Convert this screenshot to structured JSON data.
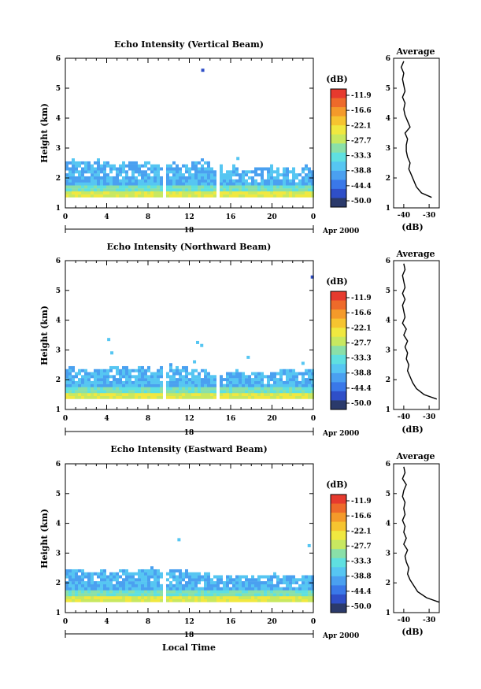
{
  "chart_data": [
    {
      "type": "heatmap",
      "title": "Echo Intensity (Vertical Beam)",
      "ylabel": "Height (km)",
      "ylim": [
        1,
        6
      ],
      "yticks": [
        "1",
        "2",
        "3",
        "4",
        "5",
        "6"
      ],
      "xlim": [
        0,
        24
      ],
      "xticks": [
        "0",
        "4",
        "8",
        "12",
        "16",
        "20",
        "0"
      ],
      "date_label": "18",
      "month_label": "Apr 2000",
      "colorbar": {
        "unit": "(dB)",
        "ticks": [
          "-11.9",
          "-16.6",
          "-22.1",
          "-27.7",
          "-33.3",
          "-38.8",
          "-44.4",
          "-50.0"
        ]
      },
      "echo_layer": {
        "base_km": 1.35,
        "top_km": [
          2.5,
          2.5,
          2.45,
          2.5,
          2.4,
          2.45,
          2.5,
          2.4,
          2.35,
          2.4,
          2.45,
          2.4,
          2.5,
          2.55,
          2.4,
          2.2,
          2.3,
          2.2,
          2.3,
          2.35,
          2.25,
          2.3,
          2.25,
          2.3
        ],
        "gaps_hours": [
          9.5,
          14.6
        ],
        "isolated_points": [
          {
            "t": 13.3,
            "h": 5.6
          },
          {
            "t": 16.7,
            "h": 2.65
          }
        ]
      },
      "average_profile": {
        "title": "Average",
        "xlabel": "(dB)",
        "xticks": [
          "-40",
          "-30"
        ],
        "height_km": [
          1.35,
          1.5,
          1.7,
          1.9,
          2.1,
          2.3,
          2.5,
          2.7,
          2.9,
          3.1,
          3.3,
          3.5,
          3.7,
          3.9,
          4.1,
          4.3,
          4.5,
          4.7,
          4.9,
          5.1,
          5.3,
          5.5,
          5.7,
          5.9
        ],
        "db": [
          -29,
          -33,
          -35,
          -36,
          -37,
          -38,
          -37.5,
          -38.5,
          -39,
          -39,
          -38.5,
          -39.5,
          -37.5,
          -38.5,
          -39.5,
          -40,
          -39.5,
          -40.5,
          -39.5,
          -40,
          -40.5,
          -40,
          -41,
          -40
        ]
      }
    },
    {
      "type": "heatmap",
      "title": "Echo Intensity (Northward Beam)",
      "ylabel": "Height (km)",
      "ylim": [
        1,
        6
      ],
      "yticks": [
        "1",
        "2",
        "3",
        "4",
        "5",
        "6"
      ],
      "xlim": [
        0,
        24
      ],
      "xticks": [
        "0",
        "4",
        "8",
        "12",
        "16",
        "20",
        "0"
      ],
      "date_label": "18",
      "month_label": "Apr 2000",
      "colorbar": {
        "unit": "(dB)",
        "ticks": [
          "-11.9",
          "-16.6",
          "-22.1",
          "-27.7",
          "-33.3",
          "-38.8",
          "-44.4",
          "-50.0"
        ]
      },
      "echo_layer": {
        "base_km": 1.35,
        "top_km": [
          2.35,
          2.3,
          2.35,
          2.3,
          2.35,
          2.35,
          2.3,
          2.35,
          2.3,
          2.3,
          2.4,
          2.35,
          2.3,
          2.3,
          2.15,
          2.2,
          2.25,
          2.2,
          2.2,
          2.3,
          2.25,
          2.25,
          2.2,
          2.3
        ],
        "gaps_hours": [
          9.5,
          14.6
        ],
        "isolated_points": [
          {
            "t": 4.2,
            "h": 3.35
          },
          {
            "t": 4.5,
            "h": 2.9
          },
          {
            "t": 12.8,
            "h": 3.25
          },
          {
            "t": 13.2,
            "h": 3.15
          },
          {
            "t": 12.5,
            "h": 2.6
          },
          {
            "t": 17.7,
            "h": 2.75
          },
          {
            "t": 23.9,
            "h": 5.45
          },
          {
            "t": 23.0,
            "h": 2.55
          }
        ]
      },
      "average_profile": {
        "title": "Average",
        "xlabel": "(dB)",
        "xticks": [
          "-40",
          "-30"
        ],
        "height_km": [
          1.35,
          1.5,
          1.7,
          1.9,
          2.1,
          2.3,
          2.5,
          2.7,
          2.9,
          3.1,
          3.3,
          3.5,
          3.7,
          3.9,
          4.1,
          4.3,
          4.5,
          4.7,
          4.9,
          5.1,
          5.3,
          5.5,
          5.7,
          5.9
        ],
        "db": [
          -27,
          -32,
          -35,
          -36.5,
          -37.5,
          -38.5,
          -38,
          -39,
          -38.5,
          -39.5,
          -38.5,
          -40,
          -39,
          -40.5,
          -39.5,
          -40,
          -40.5,
          -39.5,
          -40.5,
          -39.5,
          -40,
          -40.5,
          -39.5,
          -40
        ]
      }
    },
    {
      "type": "heatmap",
      "title": "Echo Intensity (Eastward Beam)",
      "xlabel": "Local Time",
      "ylabel": "Height (km)",
      "ylim": [
        1,
        6
      ],
      "yticks": [
        "1",
        "2",
        "3",
        "4",
        "5",
        "6"
      ],
      "xlim": [
        0,
        24
      ],
      "xticks": [
        "0",
        "4",
        "8",
        "12",
        "16",
        "20",
        "0"
      ],
      "date_label": "18",
      "month_label": "Apr 2000",
      "colorbar": {
        "unit": "(dB)",
        "ticks": [
          "-11.9",
          "-16.6",
          "-22.1",
          "-27.7",
          "-33.3",
          "-38.8",
          "-44.4",
          "-50.0"
        ]
      },
      "echo_layer": {
        "base_km": 1.35,
        "top_km": [
          2.4,
          2.4,
          2.35,
          2.4,
          2.35,
          2.4,
          2.35,
          2.4,
          2.4,
          2.35,
          2.4,
          2.35,
          2.3,
          2.3,
          2.2,
          2.2,
          2.2,
          2.2,
          2.2,
          2.2,
          2.2,
          2.2,
          2.2,
          2.2
        ],
        "gaps_hours": [
          9.5
        ],
        "isolated_points": [
          {
            "t": 11.0,
            "h": 3.45
          },
          {
            "t": 23.6,
            "h": 3.25
          }
        ]
      },
      "average_profile": {
        "title": "Average",
        "xlabel": "(dB)",
        "xticks": [
          "-40",
          "-30"
        ],
        "height_km": [
          1.35,
          1.5,
          1.7,
          1.9,
          2.1,
          2.3,
          2.5,
          2.7,
          2.9,
          3.1,
          3.3,
          3.5,
          3.7,
          3.9,
          4.1,
          4.3,
          4.5,
          4.7,
          4.9,
          5.1,
          5.3,
          5.5,
          5.7,
          5.9
        ],
        "db": [
          -26,
          -31,
          -34.5,
          -36,
          -37.5,
          -38.5,
          -38,
          -39,
          -39.5,
          -38.5,
          -40,
          -39,
          -40,
          -39.5,
          -40.5,
          -39.5,
          -40,
          -39.5,
          -40.5,
          -40,
          -39,
          -40.5,
          -39.5,
          -40
        ]
      }
    }
  ],
  "colors": [
    "#2b3a6b",
    "#2f4fc8",
    "#3a78e8",
    "#4aa0f0",
    "#56c6f2",
    "#5fe0e0",
    "#8ae0a8",
    "#c8e860",
    "#f0e840",
    "#f6c430",
    "#f49a2a",
    "#ee6a2a",
    "#e63a2e"
  ]
}
